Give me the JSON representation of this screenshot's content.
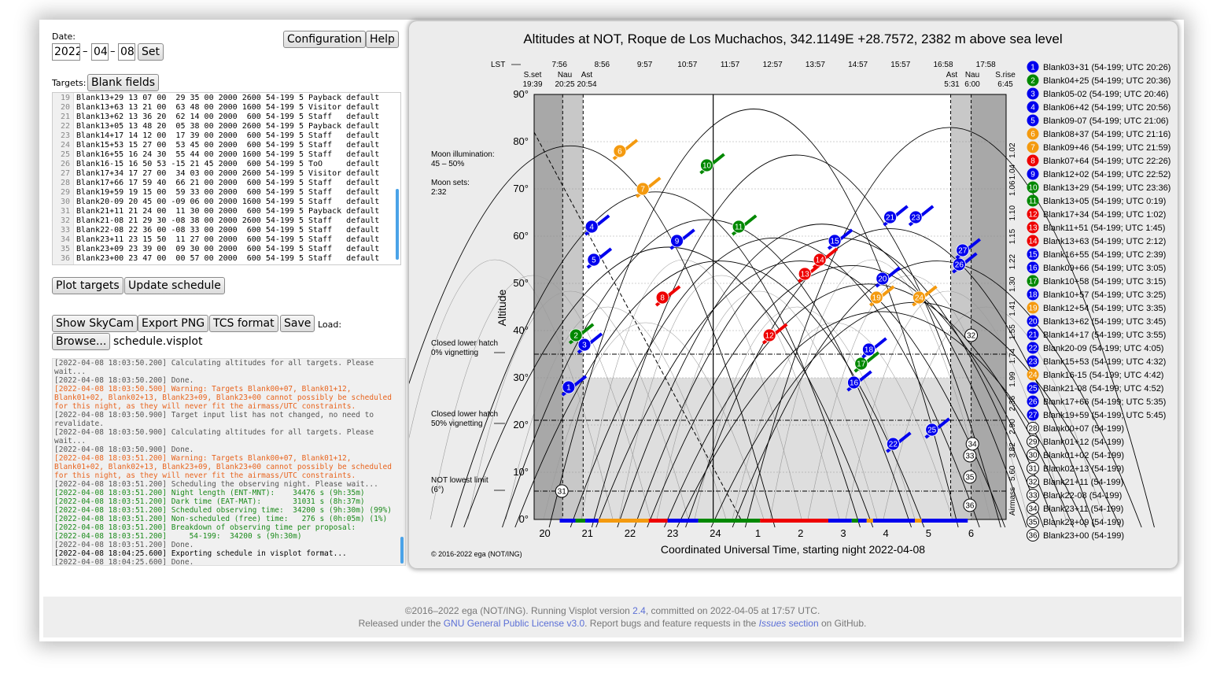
{
  "date": {
    "label": "Date:",
    "year": "2022",
    "month": "04",
    "day": "08",
    "set_label": "Set",
    "sep": "–"
  },
  "buttons": {
    "configuration": "Configuration",
    "help": "Help",
    "blank_fields": "Blank fields",
    "plot_targets": "Plot targets",
    "update_schedule": "Update schedule",
    "show_skycam": "Show SkyCam",
    "export_png": "Export PNG",
    "tcs_format": "TCS format",
    "save": "Save",
    "load_label": "Load:",
    "browse": "Browse...",
    "file_name": "schedule.visplot"
  },
  "targets_label": "Targets:",
  "target_lines": [
    {
      "n": "19",
      "t": "Blank13+29 13 07 00  29 35 00 2000 2600 54-199 5 Payback default"
    },
    {
      "n": "20",
      "t": "Blank13+63 13 21 00  63 48 00 2000 1600 54-199 5 Visitor default"
    },
    {
      "n": "21",
      "t": "Blank13+62 13 36 20  62 14 00 2000  600 54-199 5 Staff   default"
    },
    {
      "n": "22",
      "t": "Blank13+05 13 48 20  05 38 00 2000 2600 54-199 5 Payback default"
    },
    {
      "n": "23",
      "t": "Blank14+17 14 12 00  17 39 00 2000  600 54-199 5 Staff   default"
    },
    {
      "n": "24",
      "t": "Blank15+53 15 27 00  53 45 00 2000  600 54-199 5 Staff   default"
    },
    {
      "n": "25",
      "t": "Blank16+55 16 24 30  55 44 00 2000 1600 54-199 5 Staff   default"
    },
    {
      "n": "26",
      "t": "Blank16-15 16 50 53 -15 21 45 2000  600 54-199 5 ToO     default"
    },
    {
      "n": "27",
      "t": "Blank17+34 17 27 00  34 03 00 2000 2600 54-199 5 Visitor default"
    },
    {
      "n": "28",
      "t": "Blank17+66 17 59 40  66 21 00 2000  600 54-199 5 Staff   default"
    },
    {
      "n": "29",
      "t": "Blank19+59 19 15 00  59 33 00 2000  600 54-199 5 Staff   default"
    },
    {
      "n": "30",
      "t": "Blank20-09 20 45 00 -09 06 00 2000 1600 54-199 5 Staff   default"
    },
    {
      "n": "31",
      "t": "Blank21+11 21 24 00  11 30 00 2000  600 54-199 5 Payback default"
    },
    {
      "n": "32",
      "t": "Blank21-08 21 29 30 -08 38 00 2000 2600 54-199 5 Staff   default"
    },
    {
      "n": "33",
      "t": "Blank22-08 22 36 00 -08 33 00 2000  600 54-199 5 Staff   default"
    },
    {
      "n": "34",
      "t": "Blank23+11 23 15 50  11 27 00 2000  600 54-199 5 Staff   default"
    },
    {
      "n": "35",
      "t": "Blank23+09 23 39 00  09 30 00 2000  600 54-199 5 Staff   default"
    },
    {
      "n": "36",
      "t": "Blank23+00 23 47 00  00 57 00 2000  600 54-199 5 Staff   default"
    }
  ],
  "log": [
    {
      "c": "gray",
      "t": "[2022-04-08 18:03:50.200] Calculating altitudes for all targets. Please"
    },
    {
      "c": "gray",
      "t": "wait..."
    },
    {
      "c": "gray",
      "t": "[2022-04-08 18:03:50.200] Done."
    },
    {
      "c": "warn",
      "t": "[2022-04-08 18:03:50.500] Warning: Targets Blank00+07, Blank01+12,"
    },
    {
      "c": "warn",
      "t": "Blank01+02, Blank02+13, Blank23+09, Blank23+00 cannot possibly be scheduled"
    },
    {
      "c": "warn",
      "t": "for this night, as they will never fit the airmass/UTC constraints."
    },
    {
      "c": "gray",
      "t": "[2022-04-08 18:03:50.900] Target input list has not changed, no need to"
    },
    {
      "c": "gray",
      "t": "revalidate."
    },
    {
      "c": "gray",
      "t": "[2022-04-08 18:03:50.900] Calculating altitudes for all targets. Please"
    },
    {
      "c": "gray",
      "t": "wait..."
    },
    {
      "c": "gray",
      "t": "[2022-04-08 18:03:50.900] Done."
    },
    {
      "c": "warn",
      "t": "[2022-04-08 18:03:51.200] Warning: Targets Blank00+07, Blank01+12,"
    },
    {
      "c": "warn",
      "t": "Blank01+02, Blank02+13, Blank23+09, Blank23+00 cannot possibly be scheduled"
    },
    {
      "c": "warn",
      "t": "for this night, as they will never fit the airmass/UTC constraints."
    },
    {
      "c": "gray",
      "t": "[2022-04-08 18:03:51.200] Scheduling the observing night. Please wait..."
    },
    {
      "c": "green",
      "t": "[2022-04-08 18:03:51.200] Night length (ENT-MNT):    34476 s (9h:35m)"
    },
    {
      "c": "green",
      "t": "[2022-04-08 18:03:51.200] Dark time (EAT-MAT):       31031 s (8h:37m)"
    },
    {
      "c": "green",
      "t": "[2022-04-08 18:03:51.200] Scheduled observing time:  34200 s (9h:30m) (99%)"
    },
    {
      "c": "green",
      "t": "[2022-04-08 18:03:51.200] Non-scheduled (free) time:   276 s (0h:05m) (1%)"
    },
    {
      "c": "green",
      "t": "[2022-04-08 18:03:51.200] Breakdown of observing time per proposal:"
    },
    {
      "c": "green",
      "t": "[2022-04-08 18:03:51.200]     54-199:  34200 s (9h:30m)"
    },
    {
      "c": "gray",
      "t": "[2022-04-08 18:03:51.200] Done."
    },
    {
      "c": "black",
      "t": "[2022-04-08 18:04:25.600] Exporting schedule in visplot format..."
    },
    {
      "c": "gray",
      "t": "[2022-04-08 18:04:25.600] Done."
    }
  ],
  "plot": {
    "title": "Altitudes at NOT, Roque de Los Muchachos, 342.1149E +28.7572, 2382 m above sea level",
    "lst_label": "LST",
    "lst_ticks": [
      "7:56",
      "8:56",
      "9:57",
      "10:57",
      "11:57",
      "12:57",
      "13:57",
      "14:57",
      "15:57",
      "16:58",
      "17:58"
    ],
    "twilight": [
      {
        "name": "S.set",
        "time": "19:39"
      },
      {
        "name": "Nau",
        "time": "20:25"
      },
      {
        "name": "Ast",
        "time": "20:54"
      },
      {
        "name": "Ast",
        "time": "5:31"
      },
      {
        "name": "Nau",
        "time": "6:00"
      },
      {
        "name": "S.rise",
        "time": "6:45"
      }
    ],
    "y_label": "Altitude",
    "y_ticks": [
      "0°",
      "10°",
      "20°",
      "30°",
      "40°",
      "50°",
      "60°",
      "70°",
      "80°",
      "90°"
    ],
    "airmass_label": "Airmass",
    "airmass_ticks": [
      "5.60",
      "3.82",
      "2.90",
      "2.36",
      "1.99",
      "1.74",
      "1.55",
      "1.41",
      "1.30",
      "1.22",
      "1.15",
      "1.10",
      "1.06",
      "1.04",
      "1.02"
    ],
    "x_ticks": [
      "20",
      "21",
      "22",
      "23",
      "24",
      "1",
      "2",
      "3",
      "4",
      "5",
      "6"
    ],
    "x_label": "Coordinated Universal Time, starting night 2022-04-08",
    "moon_illum_label": "Moon illumination:",
    "moon_illum": "45 – 50%",
    "moon_sets_label": "Moon sets:",
    "moon_sets": "2:32",
    "closed0_a": "Closed lower hatch",
    "closed0_b": "0% vignetting",
    "closed50_a": "Closed lower hatch",
    "closed50_b": "50% vignetting",
    "lowest_a": "NOT lowest limit",
    "lowest_b": "(6°)",
    "copyright": "© 2016-2022 ega (NOT/ING)"
  },
  "colors": {
    "blue": "#0000ee",
    "green": "#008800",
    "orange": "#f49a0f",
    "red": "#ee0000"
  },
  "legend": [
    {
      "num": "1",
      "text": "Blank03+31 (54-199; UTC 20:26)",
      "color": "blue"
    },
    {
      "num": "2",
      "text": "Blank04+25 (54-199; UTC 20:36)",
      "color": "green"
    },
    {
      "num": "3",
      "text": "Blank05-02 (54-199; UTC 20:46)",
      "color": "blue"
    },
    {
      "num": "4",
      "text": "Blank06+42 (54-199; UTC 20:56)",
      "color": "blue"
    },
    {
      "num": "5",
      "text": "Blank09-07 (54-199; UTC 21:06)",
      "color": "blue"
    },
    {
      "num": "6",
      "text": "Blank08+37 (54-199; UTC 21:16)",
      "color": "orange"
    },
    {
      "num": "7",
      "text": "Blank09+46 (54-199; UTC 21:59)",
      "color": "orange"
    },
    {
      "num": "8",
      "text": "Blank07+64 (54-199; UTC 22:26)",
      "color": "red"
    },
    {
      "num": "9",
      "text": "Blank12+02 (54-199; UTC 22:52)",
      "color": "blue"
    },
    {
      "num": "10",
      "text": "Blank13+29 (54-199; UTC 23:36)",
      "color": "green"
    },
    {
      "num": "11",
      "text": "Blank13+05 (54-199; UTC 0:19)",
      "color": "green"
    },
    {
      "num": "12",
      "text": "Blank17+34 (54-199; UTC 1:02)",
      "color": "red"
    },
    {
      "num": "13",
      "text": "Blank11+51 (54-199; UTC 1:45)",
      "color": "red"
    },
    {
      "num": "14",
      "text": "Blank13+63 (54-199; UTC 2:12)",
      "color": "red"
    },
    {
      "num": "15",
      "text": "Blank16+55 (54-199; UTC 2:39)",
      "color": "blue"
    },
    {
      "num": "16",
      "text": "Blank09+66 (54-199; UTC 3:05)",
      "color": "blue"
    },
    {
      "num": "17",
      "text": "Blank10+58 (54-199; UTC 3:15)",
      "color": "green"
    },
    {
      "num": "18",
      "text": "Blank10+57 (54-199; UTC 3:25)",
      "color": "blue"
    },
    {
      "num": "19",
      "text": "Blank12+54 (54-199; UTC 3:35)",
      "color": "orange"
    },
    {
      "num": "20",
      "text": "Blank13+62 (54-199; UTC 3:45)",
      "color": "blue"
    },
    {
      "num": "21",
      "text": "Blank14+17 (54-199; UTC 3:55)",
      "color": "blue"
    },
    {
      "num": "22",
      "text": "Blank20-09 (54-199; UTC 4:05)",
      "color": "blue"
    },
    {
      "num": "23",
      "text": "Blank15+53 (54-199; UTC 4:32)",
      "color": "blue"
    },
    {
      "num": "24",
      "text": "Blank16-15 (54-199; UTC 4:42)",
      "color": "orange"
    },
    {
      "num": "25",
      "text": "Blank21-08 (54-199; UTC 4:52)",
      "color": "blue"
    },
    {
      "num": "26",
      "text": "Blank17+66 (54-199; UTC 5:35)",
      "color": "blue"
    },
    {
      "num": "27",
      "text": "Blank19+59 (54-199; UTC 5:45)",
      "color": "blue"
    },
    {
      "num": "28",
      "text": "Blank00+07 (54-199)",
      "color": "none"
    },
    {
      "num": "29",
      "text": "Blank01+12 (54-199)",
      "color": "none"
    },
    {
      "num": "30",
      "text": "Blank01+02 (54-199)",
      "color": "none"
    },
    {
      "num": "31",
      "text": "Blank02+13 (54-199)",
      "color": "none"
    },
    {
      "num": "32",
      "text": "Blank21+11 (54-199)",
      "color": "none"
    },
    {
      "num": "33",
      "text": "Blank22-08 (54-199)",
      "color": "none"
    },
    {
      "num": "34",
      "text": "Blank23+11 (54-199)",
      "color": "none"
    },
    {
      "num": "35",
      "text": "Blank23+09 (54-199)",
      "color": "none"
    },
    {
      "num": "36",
      "text": "Blank23+00 (54-199)",
      "color": "none"
    }
  ],
  "markers": [
    {
      "num": "1",
      "x": 20.56,
      "y": 28
    },
    {
      "num": "2",
      "x": 20.73,
      "y": 39
    },
    {
      "num": "3",
      "x": 20.93,
      "y": 37
    },
    {
      "num": "4",
      "x": 21.1,
      "y": 62
    },
    {
      "num": "5",
      "x": 21.15,
      "y": 55
    },
    {
      "num": "6",
      "x": 21.76,
      "y": 78
    },
    {
      "num": "7",
      "x": 22.3,
      "y": 70
    },
    {
      "num": "8",
      "x": 22.76,
      "y": 47
    },
    {
      "num": "9",
      "x": 23.1,
      "y": 59
    },
    {
      "num": "10",
      "x": 23.8,
      "y": 75
    },
    {
      "num": "11",
      "x": 24.55,
      "y": 62
    },
    {
      "num": "12",
      "x": 25.27,
      "y": 39
    },
    {
      "num": "13",
      "x": 26.1,
      "y": 52
    },
    {
      "num": "14",
      "x": 26.45,
      "y": 55
    },
    {
      "num": "15",
      "x": 26.8,
      "y": 59
    },
    {
      "num": "16",
      "x": 27.25,
      "y": 29
    },
    {
      "num": "17",
      "x": 27.42,
      "y": 33
    },
    {
      "num": "18",
      "x": 27.6,
      "y": 36
    },
    {
      "num": "19",
      "x": 27.78,
      "y": 47
    },
    {
      "num": "20",
      "x": 27.92,
      "y": 51
    },
    {
      "num": "21",
      "x": 28.1,
      "y": 64
    },
    {
      "num": "22",
      "x": 28.17,
      "y": 16
    },
    {
      "num": "23",
      "x": 28.7,
      "y": 64
    },
    {
      "num": "24",
      "x": 28.78,
      "y": 47
    },
    {
      "num": "25",
      "x": 29.08,
      "y": 19
    },
    {
      "num": "26",
      "x": 29.72,
      "y": 54
    },
    {
      "num": "27",
      "x": 29.8,
      "y": 57
    },
    {
      "num": "31",
      "x": 20.4,
      "y": 6
    },
    {
      "num": "32",
      "x": 30.0,
      "y": 39
    },
    {
      "num": "33",
      "x": 29.97,
      "y": 13.5
    },
    {
      "num": "34",
      "x": 30.03,
      "y": 16
    },
    {
      "num": "35",
      "x": 29.97,
      "y": 9
    },
    {
      "num": "36",
      "x": 29.97,
      "y": 3
    }
  ],
  "footer": {
    "line1_a": "©2016–2022 ega (NOT/ING). Running Visplot version ",
    "version": "2.4",
    "line1_b": ", committed on 2022-04-05 at 17:57 UTC.",
    "line2_a": "Released under the ",
    "license": "GNU General Public License v3.0",
    "line2_b": ". Report bugs and feature requests in the ",
    "issues": "Issues",
    "section": " section",
    "line2_c": " on GitHub."
  }
}
